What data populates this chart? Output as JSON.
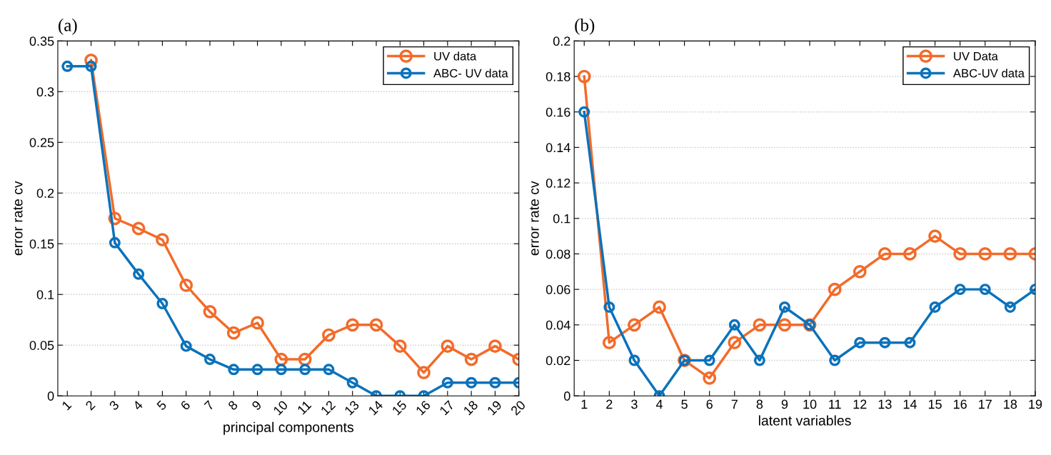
{
  "chart_data": [
    {
      "type": "line",
      "title": "(a)",
      "xlabel": "principal components",
      "ylabel": "error rate cv",
      "x": [
        1,
        2,
        3,
        4,
        5,
        6,
        7,
        8,
        9,
        10,
        11,
        12,
        13,
        14,
        15,
        16,
        17,
        18,
        19,
        20
      ],
      "xlim": [
        0.6,
        20
      ],
      "xticks": [
        1,
        2,
        3,
        4,
        5,
        6,
        7,
        8,
        9,
        10,
        11,
        12,
        13,
        14,
        15,
        16,
        17,
        18,
        19,
        20
      ],
      "ylim": [
        0,
        0.35
      ],
      "yticks": [
        0,
        0.05,
        0.1,
        0.15,
        0.2,
        0.25,
        0.3,
        0.35
      ],
      "grid": "y",
      "legend": "top right",
      "marker": "circle",
      "line_style": "solid",
      "series": [
        {
          "name": "UV data",
          "color": "#f26b2a",
          "values": [
            null,
            0.331,
            0.175,
            0.165,
            0.154,
            0.109,
            0.083,
            0.062,
            0.072,
            0.036,
            0.036,
            0.06,
            0.07,
            0.07,
            0.049,
            0.023,
            0.049,
            0.036,
            0.049,
            0.036
          ]
        },
        {
          "name": "ABC- UV data",
          "color": "#0b72bb",
          "values": [
            0.325,
            0.325,
            0.151,
            0.12,
            0.091,
            0.049,
            0.036,
            0.026,
            0.026,
            0.026,
            0.026,
            0.026,
            0.013,
            0,
            0,
            0,
            0.013,
            0.013,
            0.013,
            0.013
          ]
        }
      ]
    },
    {
      "type": "line",
      "title": "(b)",
      "xlabel": "latent variables",
      "ylabel": "error rate cv",
      "x": [
        1,
        2,
        3,
        4,
        5,
        6,
        7,
        8,
        9,
        10,
        11,
        12,
        13,
        14,
        15,
        16,
        17,
        18,
        19
      ],
      "xlim": [
        0.6,
        19
      ],
      "xticks": [
        1,
        2,
        3,
        4,
        5,
        6,
        7,
        8,
        9,
        10,
        11,
        12,
        13,
        14,
        15,
        16,
        17,
        18,
        19
      ],
      "ylim": [
        0,
        0.2
      ],
      "yticks": [
        0,
        0.02,
        0.04,
        0.06,
        0.08,
        0.1,
        0.12,
        0.14,
        0.16,
        0.18,
        0.2
      ],
      "grid": "y",
      "legend": "top right",
      "marker": "circle",
      "line_style": "solid",
      "series": [
        {
          "name": "UV Data",
          "color": "#f26b2a",
          "values": [
            0.18,
            0.03,
            0.04,
            0.05,
            0.02,
            0.01,
            0.03,
            0.04,
            0.04,
            0.04,
            0.06,
            0.07,
            0.08,
            0.08,
            0.09,
            0.08,
            0.08,
            0.08,
            0.08
          ]
        },
        {
          "name": "ABC-UV data",
          "color": "#0b72bb",
          "values": [
            0.16,
            0.05,
            0.02,
            0,
            0.02,
            0.02,
            0.04,
            0.02,
            0.05,
            0.04,
            0.02,
            0.03,
            0.03,
            0.03,
            0.05,
            0.06,
            0.06,
            0.05,
            0.06
          ]
        }
      ]
    }
  ]
}
